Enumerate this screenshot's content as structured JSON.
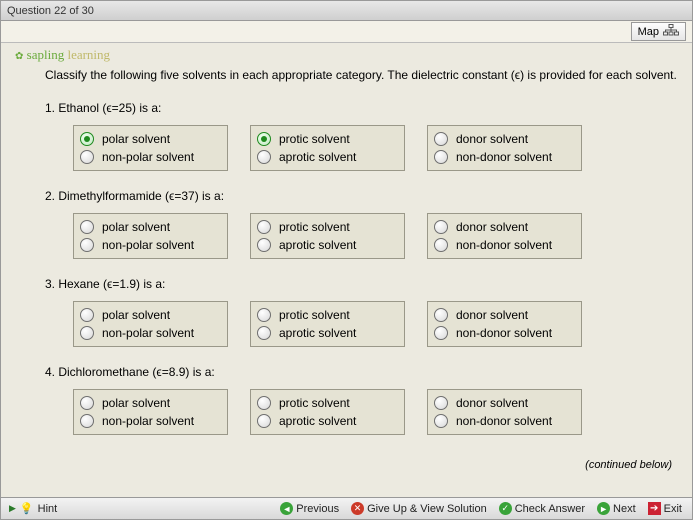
{
  "window": {
    "title": "Question 22 of 30"
  },
  "topbar": {
    "map_label": "Map"
  },
  "branding": {
    "text1": "sapling",
    "text2": "learning"
  },
  "prompt": {
    "line": "Classify the following five solvents in each appropriate category. The dielectric constant (ϵ) is provided for each solvent."
  },
  "continued": "(continued below)",
  "option_labels": {
    "polar": "polar solvent",
    "nonpolar": "non-polar solvent",
    "protic": "protic solvent",
    "aprotic": "aprotic solvent",
    "donor": "donor solvent",
    "nondonor": "non-donor solvent"
  },
  "questions": [
    {
      "num": "1",
      "text": "Ethanol (ϵ=25) is a:",
      "sel": {
        "polarity": "polar",
        "proticity": "protic",
        "donor": null
      }
    },
    {
      "num": "2",
      "text": "Dimethylformamide (ϵ=37) is a:",
      "sel": {
        "polarity": null,
        "proticity": null,
        "donor": null
      }
    },
    {
      "num": "3",
      "text": "Hexane (ϵ=1.9) is a:",
      "sel": {
        "polarity": null,
        "proticity": null,
        "donor": null
      }
    },
    {
      "num": "4",
      "text": "Dichloromethane (ϵ=8.9) is a:",
      "sel": {
        "polarity": null,
        "proticity": null,
        "donor": null
      }
    }
  ],
  "footer": {
    "hint": "Hint",
    "previous": "Previous",
    "giveup": "Give Up & View Solution",
    "check": "Check Answer",
    "next": "Next",
    "exit": "Exit"
  },
  "colors": {
    "option_bg": "#e5e3d4",
    "option_border": "#9a9889",
    "radio_selected": "#1f8a1f",
    "page_bg": "#eceae0"
  }
}
